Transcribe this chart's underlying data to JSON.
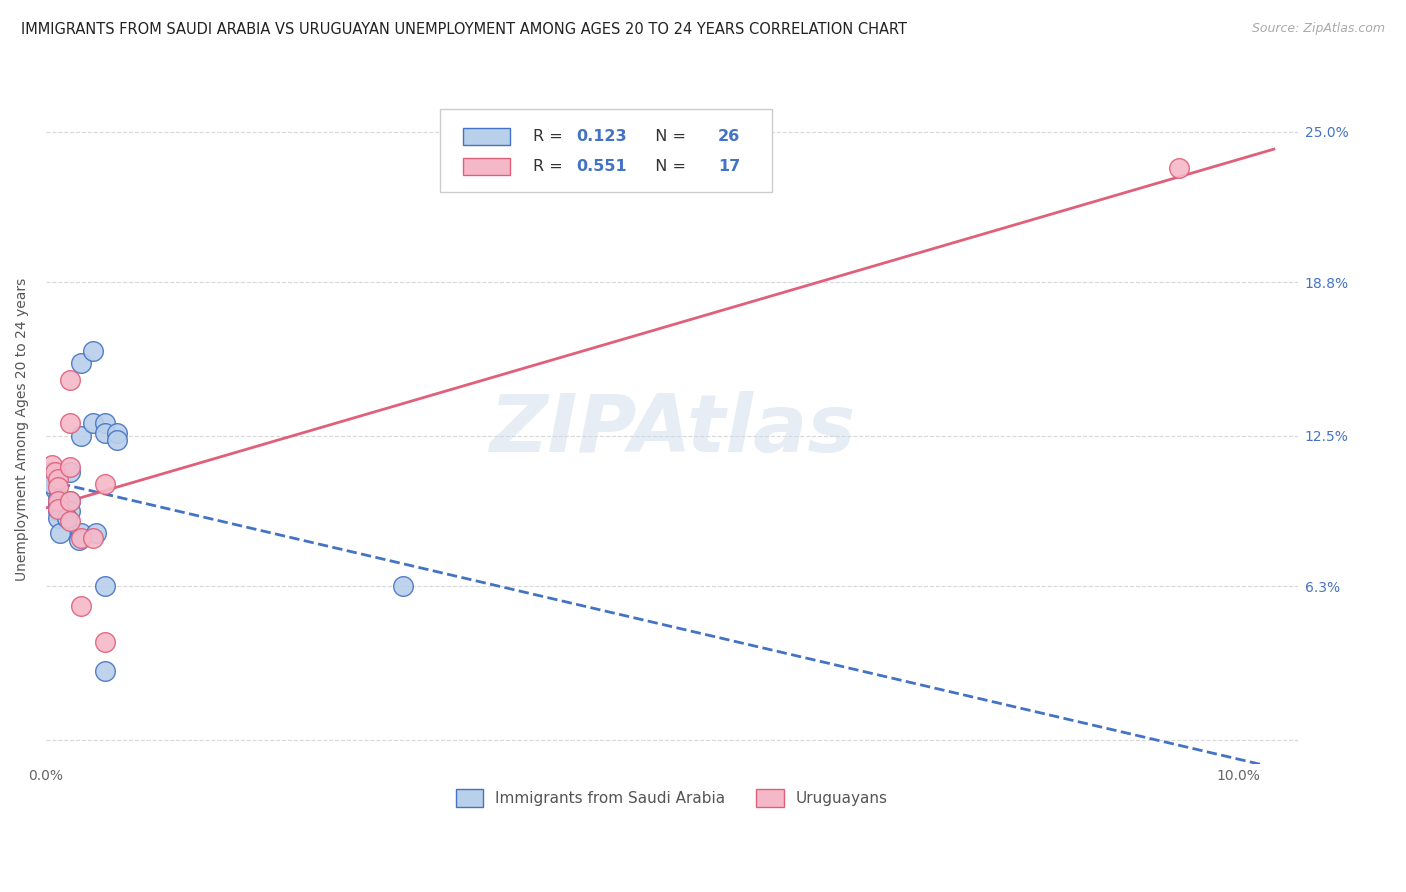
{
  "title": "IMMIGRANTS FROM SAUDI ARABIA VS URUGUAYAN UNEMPLOYMENT AMONG AGES 20 TO 24 YEARS CORRELATION CHART",
  "source": "Source: ZipAtlas.com",
  "ylabel": "Unemployment Among Ages 20 to 24 years",
  "xlim": [
    0.0,
    0.105
  ],
  "ylim": [
    -0.01,
    0.265
  ],
  "ytick_positions": [
    0.0,
    0.063,
    0.125,
    0.188,
    0.25
  ],
  "ytick_labels": [
    "",
    "6.3%",
    "12.5%",
    "18.8%",
    "25.0%"
  ],
  "xtick_positions": [
    0.0,
    0.02,
    0.04,
    0.06,
    0.08,
    0.1
  ],
  "xtick_labels": [
    "0.0%",
    "",
    "",
    "",
    "",
    "10.0%"
  ],
  "watermark": "ZIPAtlas",
  "blue_R": 0.123,
  "blue_N": 26,
  "pink_R": 0.551,
  "pink_N": 17,
  "blue_fill": "#b8d0ea",
  "pink_fill": "#f5b8c8",
  "blue_edge": "#4472c4",
  "pink_edge": "#e0607a",
  "blue_line": "#4472c4",
  "pink_line": "#e0607a",
  "legend_text_color": "#333333",
  "legend_value_color": "#4472c4",
  "blue_scatter": [
    [
      0.0005,
      0.11
    ],
    [
      0.0008,
      0.103
    ],
    [
      0.001,
      0.099
    ],
    [
      0.001,
      0.097
    ],
    [
      0.001,
      0.094
    ],
    [
      0.001,
      0.091
    ],
    [
      0.0012,
      0.085
    ],
    [
      0.0005,
      0.105
    ],
    [
      0.002,
      0.11
    ],
    [
      0.002,
      0.098
    ],
    [
      0.002,
      0.094
    ],
    [
      0.0018,
      0.091
    ],
    [
      0.003,
      0.155
    ],
    [
      0.003,
      0.125
    ],
    [
      0.003,
      0.085
    ],
    [
      0.0028,
      0.082
    ],
    [
      0.004,
      0.16
    ],
    [
      0.004,
      0.13
    ],
    [
      0.0042,
      0.085
    ],
    [
      0.005,
      0.13
    ],
    [
      0.005,
      0.126
    ],
    [
      0.006,
      0.126
    ],
    [
      0.006,
      0.123
    ],
    [
      0.005,
      0.063
    ],
    [
      0.005,
      0.028
    ],
    [
      0.03,
      0.063
    ]
  ],
  "pink_scatter": [
    [
      0.0005,
      0.113
    ],
    [
      0.0008,
      0.11
    ],
    [
      0.001,
      0.107
    ],
    [
      0.001,
      0.104
    ],
    [
      0.001,
      0.098
    ],
    [
      0.001,
      0.095
    ],
    [
      0.002,
      0.148
    ],
    [
      0.002,
      0.13
    ],
    [
      0.002,
      0.112
    ],
    [
      0.002,
      0.098
    ],
    [
      0.002,
      0.09
    ],
    [
      0.003,
      0.083
    ],
    [
      0.003,
      0.055
    ],
    [
      0.004,
      0.083
    ],
    [
      0.005,
      0.105
    ],
    [
      0.005,
      0.04
    ],
    [
      0.095,
      0.235
    ]
  ],
  "background_color": "#ffffff",
  "grid_color": "#d8d8d8"
}
